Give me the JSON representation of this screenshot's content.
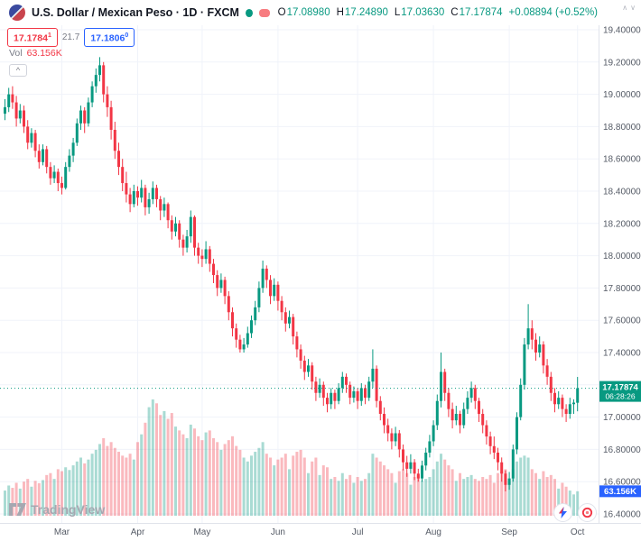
{
  "header": {
    "symbol_title": "U.S. Dollar / Mexican Peso · 1D · FXCM",
    "ohlc": {
      "o_label": "O",
      "o": "17.08980",
      "h_label": "H",
      "h": "17.24890",
      "l_label": "L",
      "l": "17.03630",
      "c_label": "C",
      "c": "17.17874",
      "change": "+0.08894 (+0.52%)"
    }
  },
  "trade": {
    "sell_main": "17.1784",
    "sell_sup": "1",
    "spread": "21.7",
    "buy_main": "17.1806",
    "buy_sup": "0"
  },
  "volume_row": {
    "label": "Vol",
    "value": "63.156K"
  },
  "collapse_button_glyph": "^",
  "price_badge": {
    "price": "17.17874",
    "countdown": "06:28:26"
  },
  "volume_axis_badge": "63.156K",
  "watermark_text": "TradingView",
  "pane_arrows": {
    "up": "∧",
    "down": "∨"
  },
  "colors": {
    "up": "#089981",
    "down": "#F23645",
    "vol_up": "rgba(8,153,129,0.35)",
    "vol_down": "rgba(242,54,69,0.35)",
    "grid": "#F0F3FA",
    "axis_border": "#E0E3EB",
    "axis_text": "#555B66",
    "badge_blue": "#2962FF",
    "title_text": "#131722",
    "muted_text": "#787B86"
  },
  "chart_data": {
    "type": "candlestick",
    "title": "U.S. Dollar / Mexican Peso, 1D, FXCM",
    "symbol": "USD/MXN",
    "interval": "1D",
    "exchange": "FXCM",
    "legend_position": "top-left",
    "grid": true,
    "y_min": 16.4,
    "y_max": 19.4,
    "y_ticks": [
      "19.40000",
      "19.20000",
      "19.00000",
      "18.80000",
      "18.60000",
      "18.40000",
      "18.20000",
      "18.00000",
      "17.80000",
      "17.60000",
      "17.40000",
      "17.20000",
      "17.00000",
      "16.80000",
      "16.60000",
      "16.40000"
    ],
    "last_price": 17.17874,
    "last_volume_k": 63.156,
    "months": [
      {
        "label": "Mar",
        "i": 15
      },
      {
        "label": "Apr",
        "i": 35
      },
      {
        "label": "May",
        "i": 52
      },
      {
        "label": "Jun",
        "i": 72
      },
      {
        "label": "Jul",
        "i": 93
      },
      {
        "label": "Aug",
        "i": 113
      },
      {
        "label": "Sep",
        "i": 133
      },
      {
        "label": "Oct",
        "i": 151
      }
    ],
    "ohlcv_note": "each candle = [open, high, low, close, volume_thousands]",
    "candles": [
      [
        18.88,
        18.97,
        18.84,
        18.92,
        65
      ],
      [
        18.92,
        19.04,
        18.89,
        19.0,
        78
      ],
      [
        19.0,
        19.05,
        18.91,
        18.95,
        72
      ],
      [
        18.95,
        18.99,
        18.8,
        18.85,
        85
      ],
      [
        18.85,
        18.94,
        18.82,
        18.9,
        70
      ],
      [
        18.9,
        18.93,
        18.76,
        18.8,
        88
      ],
      [
        18.8,
        18.84,
        18.66,
        18.7,
        95
      ],
      [
        18.7,
        18.79,
        18.67,
        18.76,
        75
      ],
      [
        18.76,
        18.78,
        18.61,
        18.65,
        90
      ],
      [
        18.65,
        18.69,
        18.54,
        18.58,
        84
      ],
      [
        18.58,
        18.69,
        18.56,
        18.66,
        92
      ],
      [
        18.66,
        18.68,
        18.51,
        18.55,
        105
      ],
      [
        18.55,
        18.58,
        18.44,
        18.48,
        110
      ],
      [
        18.48,
        18.56,
        18.45,
        18.52,
        95
      ],
      [
        18.52,
        18.54,
        18.4,
        18.45,
        120
      ],
      [
        18.45,
        18.49,
        18.38,
        18.42,
        115
      ],
      [
        18.42,
        18.58,
        18.41,
        18.55,
        125
      ],
      [
        18.55,
        18.66,
        18.52,
        18.62,
        118
      ],
      [
        18.62,
        18.73,
        18.58,
        18.7,
        130
      ],
      [
        18.7,
        18.85,
        18.68,
        18.82,
        140
      ],
      [
        18.82,
        18.93,
        18.78,
        18.9,
        150
      ],
      [
        18.9,
        18.92,
        18.76,
        18.82,
        135
      ],
      [
        18.82,
        18.98,
        18.8,
        18.95,
        145
      ],
      [
        18.95,
        19.08,
        18.92,
        19.05,
        160
      ],
      [
        19.05,
        19.16,
        19.01,
        19.12,
        170
      ],
      [
        19.12,
        19.23,
        19.08,
        19.18,
        185
      ],
      [
        19.18,
        19.2,
        18.95,
        19.0,
        200
      ],
      [
        19.0,
        19.05,
        18.86,
        18.92,
        180
      ],
      [
        18.92,
        18.96,
        18.72,
        18.78,
        190
      ],
      [
        18.78,
        18.83,
        18.6,
        18.65,
        175
      ],
      [
        18.65,
        18.7,
        18.5,
        18.55,
        165
      ],
      [
        18.55,
        18.6,
        18.4,
        18.45,
        155
      ],
      [
        18.45,
        18.52,
        18.33,
        18.38,
        150
      ],
      [
        18.38,
        18.42,
        18.27,
        18.32,
        160
      ],
      [
        18.32,
        18.44,
        18.3,
        18.4,
        145
      ],
      [
        18.4,
        18.43,
        18.31,
        18.36,
        190
      ],
      [
        18.36,
        18.47,
        18.33,
        18.42,
        210
      ],
      [
        18.42,
        18.44,
        18.25,
        18.3,
        240
      ],
      [
        18.3,
        18.39,
        18.26,
        18.35,
        280
      ],
      [
        18.35,
        18.46,
        18.32,
        18.42,
        300
      ],
      [
        18.42,
        18.44,
        18.3,
        18.35,
        290
      ],
      [
        18.35,
        18.37,
        18.22,
        18.28,
        260
      ],
      [
        18.28,
        18.36,
        18.24,
        18.32,
        270
      ],
      [
        18.32,
        18.33,
        18.17,
        18.22,
        250
      ],
      [
        18.22,
        18.25,
        18.1,
        18.15,
        265
      ],
      [
        18.15,
        18.24,
        18.12,
        18.2,
        230
      ],
      [
        18.2,
        18.22,
        18.05,
        18.1,
        220
      ],
      [
        18.1,
        18.13,
        18.0,
        18.05,
        210
      ],
      [
        18.05,
        18.16,
        18.02,
        18.12,
        200
      ],
      [
        18.12,
        18.28,
        18.08,
        18.24,
        235
      ],
      [
        18.24,
        18.25,
        18.0,
        18.05,
        225
      ],
      [
        18.05,
        18.08,
        17.95,
        18.0,
        205
      ],
      [
        18.0,
        18.04,
        17.93,
        17.98,
        195
      ],
      [
        17.98,
        18.09,
        17.95,
        18.04,
        215
      ],
      [
        18.04,
        18.06,
        17.9,
        17.95,
        220
      ],
      [
        17.95,
        17.98,
        17.83,
        17.88,
        200
      ],
      [
        17.88,
        17.91,
        17.75,
        17.8,
        190
      ],
      [
        17.8,
        17.89,
        17.77,
        17.85,
        170
      ],
      [
        17.85,
        17.87,
        17.7,
        17.75,
        185
      ],
      [
        17.75,
        17.78,
        17.6,
        17.65,
        195
      ],
      [
        17.65,
        17.68,
        17.5,
        17.55,
        205
      ],
      [
        17.55,
        17.58,
        17.43,
        17.48,
        180
      ],
      [
        17.48,
        17.51,
        17.4,
        17.42,
        170
      ],
      [
        17.42,
        17.49,
        17.4,
        17.45,
        150
      ],
      [
        17.45,
        17.56,
        17.43,
        17.52,
        140
      ],
      [
        17.52,
        17.63,
        17.49,
        17.6,
        155
      ],
      [
        17.6,
        17.72,
        17.57,
        17.68,
        165
      ],
      [
        17.68,
        17.84,
        17.65,
        17.8,
        175
      ],
      [
        17.8,
        17.97,
        17.77,
        17.92,
        190
      ],
      [
        17.92,
        17.94,
        17.8,
        17.85,
        160
      ],
      [
        17.85,
        17.88,
        17.7,
        17.75,
        150
      ],
      [
        17.75,
        17.86,
        17.72,
        17.82,
        130
      ],
      [
        17.82,
        17.84,
        17.66,
        17.72,
        145
      ],
      [
        17.72,
        17.75,
        17.6,
        17.65,
        150
      ],
      [
        17.65,
        17.68,
        17.53,
        17.58,
        160
      ],
      [
        17.58,
        17.66,
        17.55,
        17.62,
        120
      ],
      [
        17.62,
        17.64,
        17.45,
        17.5,
        155
      ],
      [
        17.5,
        17.53,
        17.37,
        17.42,
        165
      ],
      [
        17.42,
        17.45,
        17.3,
        17.35,
        170
      ],
      [
        17.35,
        17.38,
        17.23,
        17.28,
        150
      ],
      [
        17.28,
        17.36,
        17.25,
        17.32,
        110
      ],
      [
        17.32,
        17.34,
        17.17,
        17.22,
        140
      ],
      [
        17.22,
        17.25,
        17.1,
        17.15,
        150
      ],
      [
        17.15,
        17.24,
        17.12,
        17.2,
        105
      ],
      [
        17.2,
        17.22,
        17.07,
        17.12,
        130
      ],
      [
        17.12,
        17.15,
        17.03,
        17.08,
        125
      ],
      [
        17.08,
        17.18,
        17.05,
        17.15,
        95
      ],
      [
        17.15,
        17.17,
        17.05,
        17.1,
        100
      ],
      [
        17.1,
        17.21,
        17.08,
        17.18,
        90
      ],
      [
        17.18,
        17.28,
        17.15,
        17.25,
        110
      ],
      [
        17.25,
        17.27,
        17.15,
        17.2,
        95
      ],
      [
        17.2,
        17.22,
        17.08,
        17.12,
        105
      ],
      [
        17.12,
        17.19,
        17.09,
        17.16,
        85
      ],
      [
        17.16,
        17.18,
        17.05,
        17.1,
        100
      ],
      [
        17.1,
        17.21,
        17.07,
        17.18,
        90
      ],
      [
        17.18,
        17.2,
        17.08,
        17.12,
        95
      ],
      [
        17.12,
        17.25,
        17.1,
        17.22,
        110
      ],
      [
        17.22,
        17.42,
        17.18,
        17.3,
        160
      ],
      [
        17.3,
        17.32,
        17.06,
        17.1,
        150
      ],
      [
        17.1,
        17.13,
        16.98,
        17.02,
        140
      ],
      [
        17.02,
        17.06,
        16.9,
        16.95,
        130
      ],
      [
        16.95,
        16.99,
        16.85,
        16.9,
        120
      ],
      [
        16.9,
        16.93,
        16.8,
        16.85,
        110
      ],
      [
        16.85,
        16.94,
        16.82,
        16.9,
        85
      ],
      [
        16.9,
        16.92,
        16.75,
        16.8,
        115
      ],
      [
        16.8,
        16.83,
        16.67,
        16.72,
        120
      ],
      [
        16.72,
        16.76,
        16.63,
        16.68,
        110
      ],
      [
        16.68,
        16.77,
        16.65,
        16.72,
        80
      ],
      [
        16.72,
        16.74,
        16.61,
        16.65,
        100
      ],
      [
        16.65,
        16.68,
        16.6,
        16.62,
        105
      ],
      [
        16.62,
        16.73,
        16.6,
        16.7,
        90
      ],
      [
        16.7,
        16.81,
        16.67,
        16.78,
        95
      ],
      [
        16.78,
        16.89,
        16.75,
        16.85,
        100
      ],
      [
        16.85,
        16.98,
        16.82,
        16.95,
        120
      ],
      [
        16.95,
        17.14,
        16.92,
        17.1,
        140
      ],
      [
        17.1,
        17.4,
        17.06,
        17.28,
        160
      ],
      [
        17.28,
        17.3,
        17.1,
        17.15,
        145
      ],
      [
        17.15,
        17.18,
        17.0,
        17.05,
        130
      ],
      [
        17.05,
        17.09,
        16.93,
        16.98,
        120
      ],
      [
        16.98,
        17.07,
        16.95,
        17.02,
        90
      ],
      [
        17.02,
        17.04,
        16.9,
        16.95,
        110
      ],
      [
        16.95,
        17.09,
        16.93,
        17.05,
        95
      ],
      [
        17.05,
        17.16,
        17.02,
        17.12,
        100
      ],
      [
        17.12,
        17.22,
        17.09,
        17.18,
        105
      ],
      [
        17.18,
        17.2,
        17.05,
        17.1,
        95
      ],
      [
        17.1,
        17.12,
        16.97,
        17.02,
        90
      ],
      [
        17.02,
        17.05,
        16.9,
        16.95,
        100
      ],
      [
        16.95,
        16.98,
        16.83,
        16.88,
        95
      ],
      [
        16.88,
        16.91,
        16.77,
        16.82,
        105
      ],
      [
        16.82,
        16.88,
        16.74,
        16.78,
        85
      ],
      [
        16.78,
        16.81,
        16.67,
        16.72,
        110
      ],
      [
        16.72,
        16.75,
        16.6,
        16.65,
        115
      ],
      [
        16.65,
        16.67,
        16.54,
        16.58,
        120
      ],
      [
        16.58,
        16.66,
        16.55,
        16.62,
        90
      ],
      [
        16.62,
        16.83,
        16.6,
        16.8,
        120
      ],
      [
        16.8,
        17.03,
        16.77,
        17.0,
        140
      ],
      [
        17.0,
        17.24,
        16.98,
        17.2,
        150
      ],
      [
        17.2,
        17.49,
        17.17,
        17.45,
        155
      ],
      [
        17.45,
        17.7,
        17.42,
        17.55,
        150
      ],
      [
        17.55,
        17.6,
        17.42,
        17.48,
        120
      ],
      [
        17.48,
        17.52,
        17.35,
        17.4,
        110
      ],
      [
        17.4,
        17.5,
        17.37,
        17.45,
        95
      ],
      [
        17.45,
        17.47,
        17.27,
        17.32,
        115
      ],
      [
        17.32,
        17.36,
        17.2,
        17.25,
        100
      ],
      [
        17.25,
        17.28,
        17.1,
        17.15,
        105
      ],
      [
        17.15,
        17.18,
        17.03,
        17.08,
        95
      ],
      [
        17.08,
        17.16,
        17.05,
        17.12,
        70
      ],
      [
        17.12,
        17.14,
        17.0,
        17.05,
        85
      ],
      [
        17.05,
        17.08,
        16.97,
        17.02,
        75
      ],
      [
        17.02,
        17.12,
        16.99,
        17.08,
        65
      ],
      [
        17.08,
        17.11,
        17.02,
        17.09,
        55
      ],
      [
        17.089,
        17.249,
        17.036,
        17.179,
        63.156
      ]
    ]
  }
}
